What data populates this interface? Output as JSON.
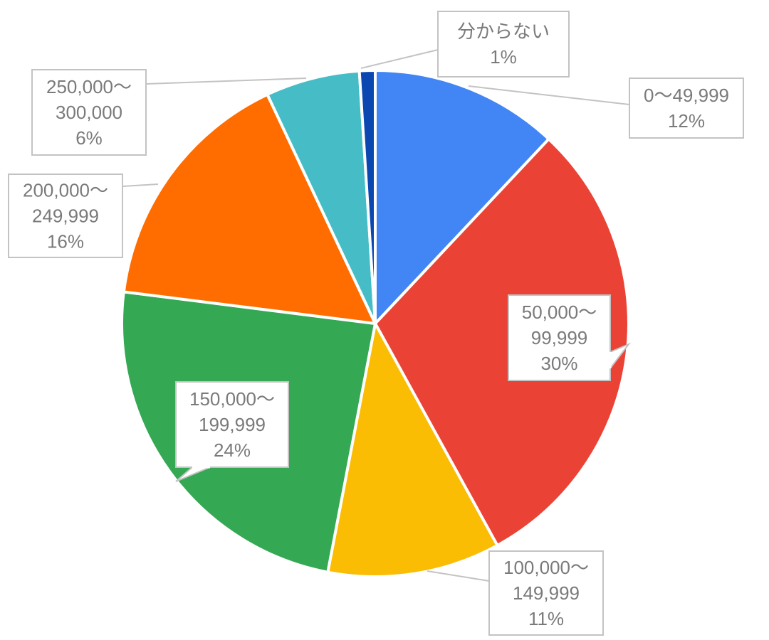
{
  "chart_data": {
    "type": "pie",
    "start_angle_deg": 0,
    "direction": "clockwise",
    "slices": [
      {
        "label": "0〜49,999",
        "value": 12,
        "display": "12%",
        "color": "#4285F4"
      },
      {
        "label": "50,000〜99,999",
        "value": 30,
        "display": "30%",
        "color": "#EA4335"
      },
      {
        "label": "100,000〜149,999",
        "value": 11,
        "display": "11%",
        "color": "#FBBC04"
      },
      {
        "label": "150,000〜199,999",
        "value": 24,
        "display": "24%",
        "color": "#34A853"
      },
      {
        "label": "200,000〜249,999",
        "value": 16,
        "display": "16%",
        "color": "#FF6D01"
      },
      {
        "label": "250,000〜300,000",
        "value": 6,
        "display": "6%",
        "color": "#46BDC6"
      },
      {
        "label": "分からない",
        "value": 1,
        "display": "1%",
        "color": "#0B47B0"
      }
    ],
    "label_lines": [
      [
        "0〜49,999",
        "12%"
      ],
      [
        "50,000〜",
        "99,999",
        "30%"
      ],
      [
        "100,000〜",
        "149,999",
        "11%"
      ],
      [
        "150,000〜",
        "199,999",
        "24%"
      ],
      [
        "200,000〜",
        "249,999",
        "16%"
      ],
      [
        "250,000〜",
        "300,000",
        "6%"
      ],
      [
        "分からない",
        "1%"
      ]
    ],
    "legend": "none"
  }
}
